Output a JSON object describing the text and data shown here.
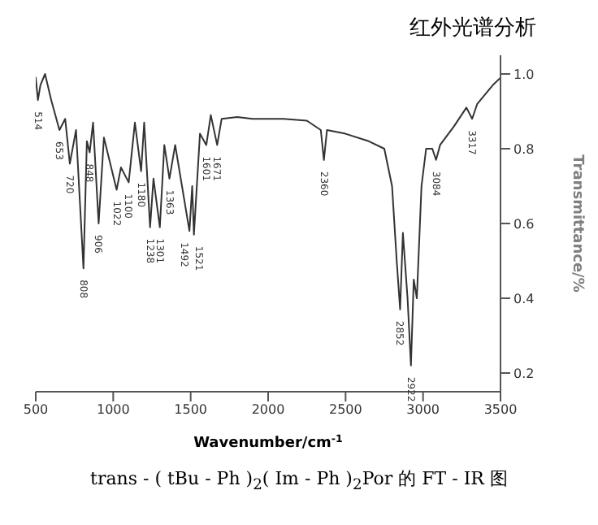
{
  "chart_data": {
    "type": "line",
    "title": "红外光谱分析",
    "xlabel": "Wavenumber/cm$^{-1}$",
    "ylabel": "Transmittance/%",
    "x": [
      500,
      514,
      530,
      560,
      600,
      653,
      690,
      720,
      760,
      808,
      830,
      848,
      870,
      906,
      940,
      1022,
      1050,
      1100,
      1140,
      1180,
      1200,
      1238,
      1260,
      1301,
      1330,
      1363,
      1400,
      1492,
      1510,
      1521,
      1560,
      1601,
      1630,
      1671,
      1700,
      1800,
      1900,
      2000,
      2100,
      2250,
      2340,
      2360,
      2380,
      2500,
      2650,
      2750,
      2800,
      2830,
      2852,
      2870,
      2900,
      2922,
      2940,
      2960,
      2990,
      3020,
      3060,
      3084,
      3110,
      3200,
      3280,
      3317,
      3350,
      3450,
      3500
    ],
    "series": [
      {
        "color": "#333333",
        "values": [
          0.99,
          0.93,
          0.97,
          1.0,
          0.93,
          0.85,
          0.88,
          0.76,
          0.85,
          0.48,
          0.82,
          0.79,
          0.87,
          0.6,
          0.83,
          0.69,
          0.75,
          0.71,
          0.87,
          0.74,
          0.87,
          0.59,
          0.72,
          0.59,
          0.81,
          0.72,
          0.81,
          0.58,
          0.7,
          0.57,
          0.84,
          0.81,
          0.89,
          0.81,
          0.88,
          0.885,
          0.88,
          0.88,
          0.88,
          0.875,
          0.85,
          0.77,
          0.85,
          0.84,
          0.82,
          0.8,
          0.7,
          0.5,
          0.37,
          0.575,
          0.4,
          0.22,
          0.45,
          0.4,
          0.7,
          0.8,
          0.8,
          0.77,
          0.81,
          0.86,
          0.91,
          0.88,
          0.92,
          0.97,
          0.99
        ]
      }
    ],
    "xlim": [
      500,
      3500
    ],
    "xticks": [
      500,
      1000,
      1500,
      2000,
      2500,
      3000,
      3500
    ],
    "ylim": [
      0.15,
      1.05
    ],
    "yticks": [
      0.2,
      0.4,
      0.6,
      0.8,
      {
        "value": 1,
        "label": "1.0"
      }
    ],
    "grid": false,
    "marker": "none",
    "line_style": "solid",
    "annotations": [
      {
        "text": "514",
        "x": 514,
        "y": 0.93
      },
      {
        "text": "653",
        "x": 653,
        "y": 0.85
      },
      {
        "text": "720",
        "x": 720,
        "y": 0.76
      },
      {
        "text": "808",
        "x": 808,
        "y": 0.48
      },
      {
        "text": "848",
        "x": 848,
        "y": 0.79
      },
      {
        "text": "906",
        "x": 906,
        "y": 0.6
      },
      {
        "text": "1022",
        "x": 1022,
        "y": 0.69
      },
      {
        "text": "1100",
        "x": 1100,
        "y": 0.71
      },
      {
        "text": "1180",
        "x": 1180,
        "y": 0.74
      },
      {
        "text": "1238",
        "x": 1238,
        "y": 0.59
      },
      {
        "text": "1301",
        "x": 1301,
        "y": 0.59
      },
      {
        "text": "1363",
        "x": 1363,
        "y": 0.72
      },
      {
        "text": "1492",
        "x": 1492,
        "y": 0.58
      },
      {
        "text": "1521",
        "x": 1521,
        "y": 0.57
      },
      {
        "text": "1601",
        "x": 1601,
        "y": 0.81
      },
      {
        "text": "1671",
        "x": 1671,
        "y": 0.81
      },
      {
        "text": "2360",
        "x": 2360,
        "y": 0.77
      },
      {
        "text": "2852",
        "x": 2852,
        "y": 0.37
      },
      {
        "text": "2922",
        "x": 2922,
        "y": 0.22
      },
      {
        "text": "3084",
        "x": 3084,
        "y": 0.77
      },
      {
        "text": "3317",
        "x": 3317,
        "y": 0.88
      },
      "trans - ( tBu - Ph )$_{2}$( Im - Ph )$_{2}$Por 的 FT - IR 图"
    ]
  }
}
